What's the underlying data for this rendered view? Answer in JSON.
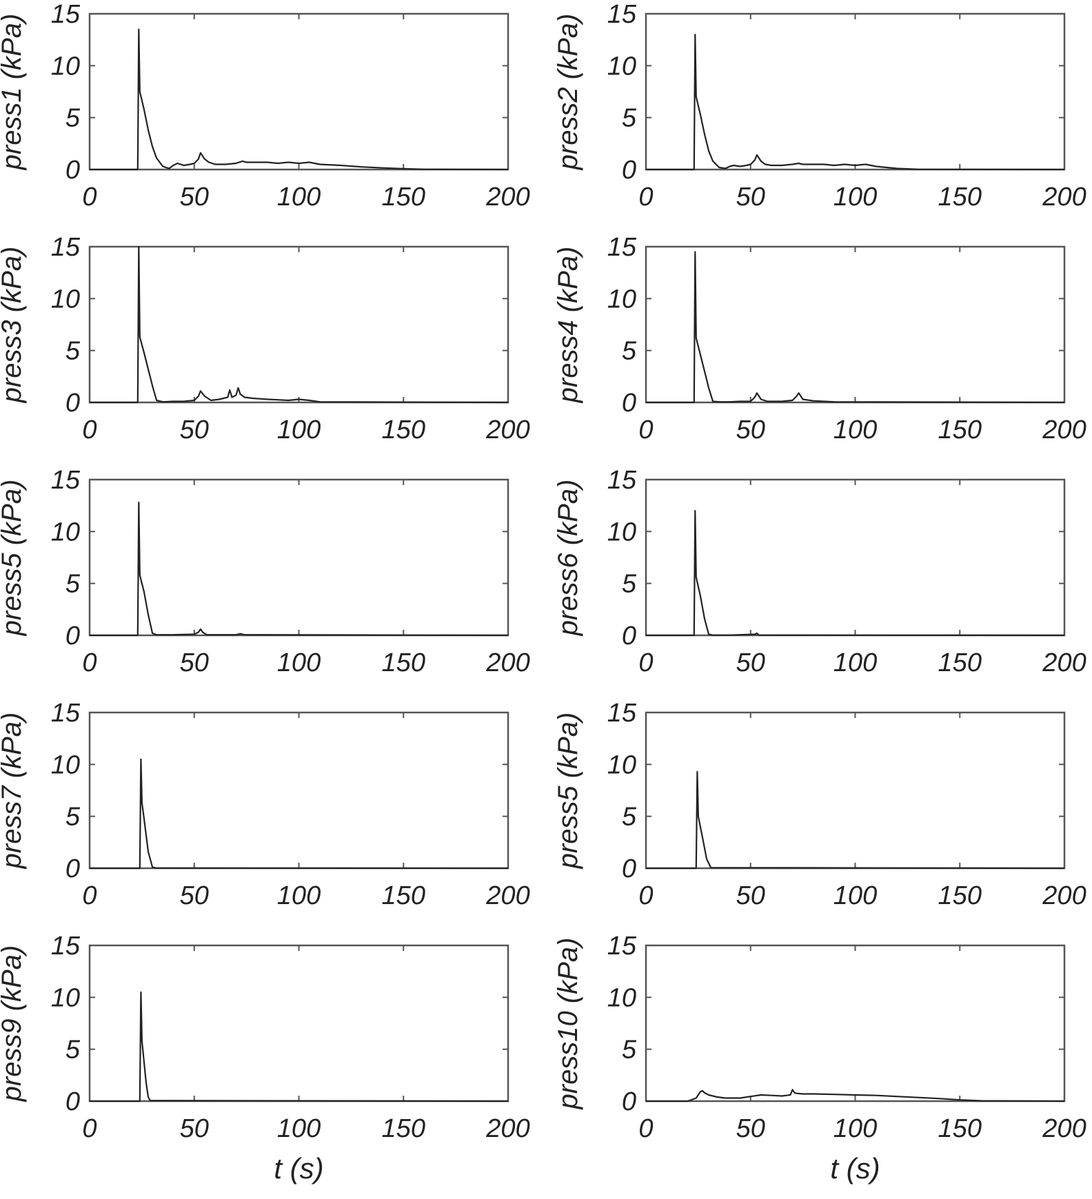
{
  "chart_data": [
    {
      "type": "line",
      "ylabel": "press1 (kPa)",
      "xlabel": "",
      "xlim": [
        0,
        200
      ],
      "ylim": [
        0,
        15
      ],
      "xticks": [
        "0",
        "50",
        "100",
        "150",
        "200"
      ],
      "yticks": [
        "0",
        "5",
        "10",
        "15"
      ],
      "series": [
        {
          "x": [
            0,
            23,
            23.5,
            24,
            26,
            28,
            30,
            32,
            35,
            38,
            40,
            42,
            45,
            48,
            50,
            52,
            53,
            55,
            57,
            60,
            65,
            70,
            73,
            75,
            80,
            85,
            90,
            95,
            100,
            105,
            110,
            120,
            130,
            140,
            150,
            160,
            200
          ],
          "y": [
            0,
            0,
            13.5,
            7.5,
            5.8,
            3.8,
            2.2,
            1.1,
            0.3,
            0.1,
            0.4,
            0.6,
            0.4,
            0.5,
            0.6,
            1.0,
            1.6,
            1.0,
            0.7,
            0.5,
            0.5,
            0.6,
            0.8,
            0.7,
            0.7,
            0.7,
            0.6,
            0.7,
            0.6,
            0.7,
            0.5,
            0.4,
            0.25,
            0.15,
            0.08,
            0.02,
            0
          ]
        }
      ]
    },
    {
      "type": "line",
      "ylabel": "press2 (kPa)",
      "xlabel": "",
      "xlim": [
        0,
        200
      ],
      "ylim": [
        0,
        15
      ],
      "xticks": [
        "0",
        "50",
        "100",
        "150",
        "200"
      ],
      "yticks": [
        "0",
        "5",
        "10",
        "15"
      ],
      "series": [
        {
          "x": [
            0,
            23,
            23.5,
            24,
            26,
            28,
            30,
            32,
            35,
            38,
            40,
            42,
            45,
            48,
            50,
            52,
            53,
            55,
            57,
            60,
            65,
            70,
            73,
            75,
            80,
            85,
            90,
            95,
            100,
            105,
            110,
            120,
            130,
            200
          ],
          "y": [
            0,
            0,
            13.0,
            7.0,
            5.3,
            3.4,
            1.8,
            0.8,
            0.2,
            0.1,
            0.3,
            0.4,
            0.3,
            0.4,
            0.5,
            0.9,
            1.4,
            0.8,
            0.5,
            0.4,
            0.4,
            0.5,
            0.6,
            0.5,
            0.5,
            0.5,
            0.4,
            0.5,
            0.4,
            0.5,
            0.3,
            0.1,
            0.02,
            0
          ]
        }
      ]
    },
    {
      "type": "line",
      "ylabel": "press3 (kPa)",
      "xlabel": "",
      "xlim": [
        0,
        200
      ],
      "ylim": [
        0,
        15
      ],
      "xticks": [
        "0",
        "50",
        "100",
        "150",
        "200"
      ],
      "yticks": [
        "0",
        "5",
        "10",
        "15"
      ],
      "series": [
        {
          "x": [
            0,
            23,
            23.5,
            24,
            26,
            28,
            30,
            32,
            35,
            40,
            45,
            50,
            52,
            53,
            55,
            58,
            62,
            66,
            67,
            68,
            70,
            71,
            72,
            74,
            78,
            85,
            90,
            95,
            100,
            105,
            110,
            200
          ],
          "y": [
            0,
            0,
            15.0,
            6.3,
            4.8,
            3.2,
            1.6,
            0.2,
            0.05,
            0.1,
            0.1,
            0.2,
            0.6,
            1.1,
            0.6,
            0.2,
            0.3,
            0.5,
            1.2,
            0.5,
            0.7,
            1.4,
            0.8,
            0.5,
            0.4,
            0.3,
            0.25,
            0.2,
            0.3,
            0.2,
            0.05,
            0
          ]
        }
      ]
    },
    {
      "type": "line",
      "ylabel": "press4 (kPa)",
      "xlabel": "",
      "xlim": [
        0,
        200
      ],
      "ylim": [
        0,
        15
      ],
      "xticks": [
        "0",
        "50",
        "100",
        "150",
        "200"
      ],
      "yticks": [
        "0",
        "5",
        "10",
        "15"
      ],
      "series": [
        {
          "x": [
            0,
            23,
            23.5,
            24,
            26,
            28,
            30,
            32,
            35,
            40,
            45,
            50,
            52,
            53,
            55,
            58,
            65,
            70,
            72,
            73,
            75,
            80,
            90,
            200
          ],
          "y": [
            0,
            0,
            14.5,
            6.2,
            4.6,
            3.0,
            1.4,
            0.1,
            0.05,
            0.05,
            0.1,
            0.1,
            0.5,
            0.9,
            0.3,
            0.1,
            0.1,
            0.2,
            0.6,
            0.9,
            0.3,
            0.15,
            0.05,
            0
          ]
        }
      ]
    },
    {
      "type": "line",
      "ylabel": "press5 (kPa)",
      "xlabel": "",
      "xlim": [
        0,
        200
      ],
      "ylim": [
        0,
        15
      ],
      "xticks": [
        "0",
        "50",
        "100",
        "150",
        "200"
      ],
      "yticks": [
        "0",
        "5",
        "10",
        "15"
      ],
      "series": [
        {
          "x": [
            0,
            23,
            23.5,
            24,
            26,
            28,
            30,
            32,
            40,
            50,
            52,
            53,
            54,
            56,
            70,
            72,
            74,
            200
          ],
          "y": [
            0,
            0,
            12.8,
            5.8,
            4.2,
            2.0,
            0.2,
            0.05,
            0.05,
            0.1,
            0.3,
            0.6,
            0.3,
            0.05,
            0.05,
            0.15,
            0.05,
            0
          ]
        }
      ]
    },
    {
      "type": "line",
      "ylabel": "press6 (kPa)",
      "xlabel": "",
      "xlim": [
        0,
        200
      ],
      "ylim": [
        0,
        15
      ],
      "xticks": [
        "0",
        "50",
        "100",
        "150",
        "200"
      ],
      "yticks": [
        "0",
        "5",
        "10",
        "15"
      ],
      "series": [
        {
          "x": [
            0,
            23,
            23.5,
            24,
            26,
            28,
            30,
            32,
            40,
            52,
            53,
            54,
            200
          ],
          "y": [
            0,
            0,
            12.0,
            5.6,
            3.8,
            1.6,
            0.1,
            0.02,
            0.02,
            0.1,
            0.2,
            0.02,
            0
          ]
        }
      ]
    },
    {
      "type": "line",
      "ylabel": "press7 (kPa)",
      "xlabel": "",
      "xlim": [
        0,
        200
      ],
      "ylim": [
        0,
        15
      ],
      "xticks": [
        "0",
        "50",
        "100",
        "150",
        "200"
      ],
      "yticks": [
        "0",
        "5",
        "10",
        "15"
      ],
      "series": [
        {
          "x": [
            0,
            24,
            24.5,
            25,
            26,
            28,
            30,
            32,
            200
          ],
          "y": [
            0,
            0,
            10.5,
            6.3,
            4.8,
            1.6,
            0.1,
            0.02,
            0
          ]
        }
      ]
    },
    {
      "type": "line",
      "ylabel": "press5 (kPa)",
      "xlabel": "",
      "xlim": [
        0,
        200
      ],
      "ylim": [
        0,
        15
      ],
      "xticks": [
        "0",
        "50",
        "100",
        "150",
        "200"
      ],
      "yticks": [
        "0",
        "5",
        "10",
        "15"
      ],
      "series": [
        {
          "x": [
            0,
            24,
            24.5,
            25,
            27,
            29,
            31,
            200
          ],
          "y": [
            0,
            0,
            9.3,
            5.0,
            3.0,
            0.9,
            0.05,
            0
          ]
        }
      ]
    },
    {
      "type": "line",
      "ylabel": "press9 (kPa)",
      "xlabel": "t (s)",
      "xlim": [
        0,
        200
      ],
      "ylim": [
        0,
        15
      ],
      "xticks": [
        "0",
        "50",
        "100",
        "150",
        "200"
      ],
      "yticks": [
        "0",
        "5",
        "10",
        "15"
      ],
      "series": [
        {
          "x": [
            0,
            24,
            24.5,
            25,
            26,
            27,
            28,
            29,
            200
          ],
          "y": [
            0,
            0,
            10.5,
            5.8,
            3.8,
            1.8,
            0.4,
            0.05,
            0
          ]
        }
      ]
    },
    {
      "type": "line",
      "ylabel": "press10 (kPa)",
      "xlabel": "t (s)",
      "xlim": [
        0,
        200
      ],
      "ylim": [
        0,
        15
      ],
      "xticks": [
        "0",
        "50",
        "100",
        "150",
        "200"
      ],
      "yticks": [
        "0",
        "5",
        "10",
        "15"
      ],
      "series": [
        {
          "x": [
            0,
            20,
            24,
            26,
            27,
            28,
            30,
            34,
            38,
            45,
            50,
            55,
            60,
            65,
            69,
            70,
            71,
            72,
            75,
            80,
            90,
            100,
            110,
            120,
            130,
            140,
            150,
            160,
            200
          ],
          "y": [
            0,
            0,
            0.3,
            0.9,
            1.0,
            0.8,
            0.6,
            0.4,
            0.3,
            0.3,
            0.45,
            0.6,
            0.55,
            0.5,
            0.6,
            1.1,
            0.8,
            0.75,
            0.7,
            0.7,
            0.65,
            0.6,
            0.55,
            0.45,
            0.35,
            0.25,
            0.12,
            0.03,
            0
          ]
        }
      ]
    }
  ]
}
